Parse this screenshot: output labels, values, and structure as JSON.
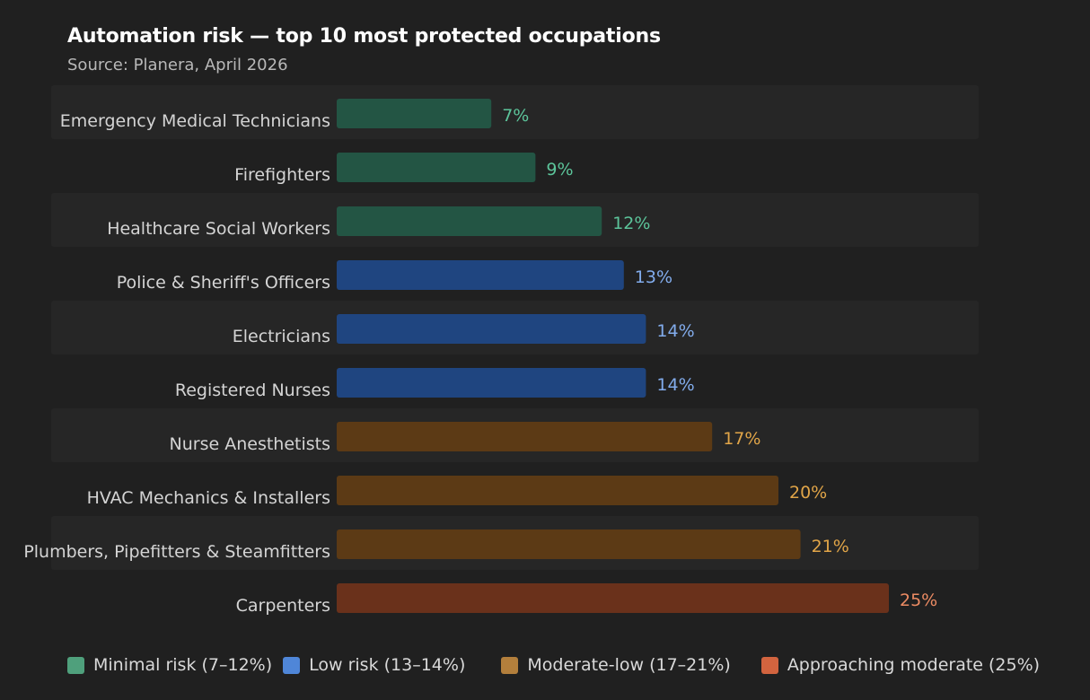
{
  "chart_data": {
    "type": "bar",
    "orientation": "horizontal",
    "title": "Automation risk — top 10 most protected occupations",
    "subtitle": "Source: Planera, April 2026",
    "xlim": [
      0,
      25
    ],
    "grid": false,
    "categories": [
      "Emergency Medical Technicians",
      "Firefighters",
      "Healthcare Social Workers",
      "Police & Sheriff's Officers",
      "Electricians",
      "Registered Nurses",
      "Nurse Anesthetists",
      "HVAC Mechanics & Installers",
      "Plumbers, Pipefitters & Steamfitters",
      "Carpenters"
    ],
    "values": [
      7,
      9,
      12,
      13,
      14,
      14,
      17,
      20,
      21,
      25
    ],
    "value_labels": [
      "7%",
      "9%",
      "12%",
      "13%",
      "14%",
      "14%",
      "17%",
      "20%",
      "21%",
      "25%"
    ],
    "groups": [
      "minimal",
      "minimal",
      "minimal",
      "low",
      "low",
      "low",
      "moderate_low",
      "moderate_low",
      "moderate_low",
      "approaching"
    ],
    "colors": {
      "minimal": {
        "bar": "#235544",
        "label": "#5cc49a",
        "swatch": "#4fa07c"
      },
      "low": {
        "bar": "#1f4580",
        "label": "#82acec",
        "swatch": "#4f86d8"
      },
      "moderate_low": {
        "bar": "#5c3a15",
        "label": "#e1a548",
        "swatch": "#b37f3c"
      },
      "approaching": {
        "bar": "#6a311b",
        "label": "#ec8b63",
        "swatch": "#d2643f"
      }
    },
    "legend_position": "bottom",
    "legend": [
      {
        "group": "minimal",
        "label": "Minimal risk (7–12%)"
      },
      {
        "group": "low",
        "label": "Low risk (13–14%)"
      },
      {
        "group": "moderate_low",
        "label": "Moderate-low (17–21%)"
      },
      {
        "group": "approaching",
        "label": "Approaching moderate (25%)"
      }
    ],
    "band_color": "#262626"
  }
}
